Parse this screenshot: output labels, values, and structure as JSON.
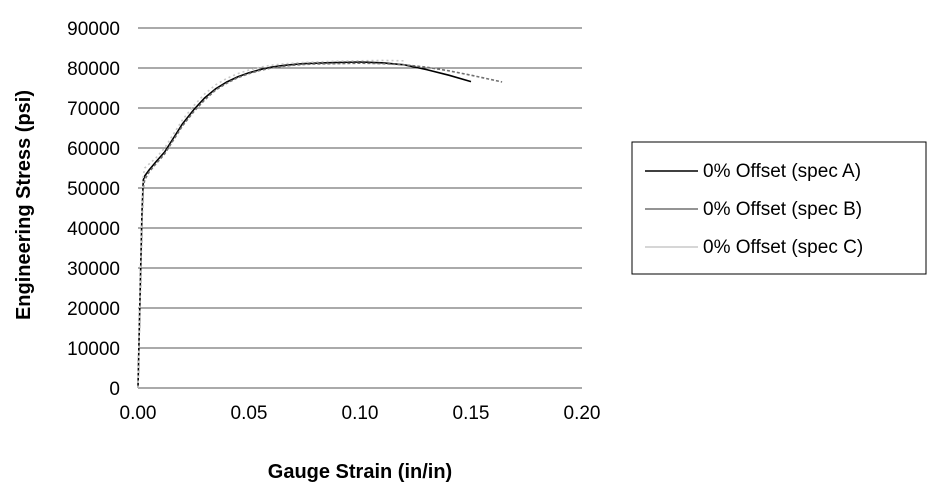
{
  "chart_data": {
    "type": "line",
    "xlabel": "Gauge Strain (in/in)",
    "ylabel": "Engineering Stress (psi)",
    "xlim": [
      0,
      0.2
    ],
    "ylim": [
      0,
      90000
    ],
    "x_ticks": [
      "0.00",
      "0.05",
      "0.10",
      "0.15",
      "0.20"
    ],
    "y_ticks": [
      "0",
      "10000",
      "20000",
      "30000",
      "40000",
      "50000",
      "60000",
      "70000",
      "80000",
      "90000"
    ],
    "grid": "horizontal",
    "legend_position": "right",
    "series": [
      {
        "name": "0% Offset (spec A)",
        "color": "#000000",
        "x": [
          0.0,
          0.0006,
          0.0012,
          0.0018,
          0.0024,
          0.003,
          0.005,
          0.008,
          0.012,
          0.016,
          0.02,
          0.025,
          0.03,
          0.035,
          0.04,
          0.045,
          0.05,
          0.055,
          0.06,
          0.065,
          0.07,
          0.075,
          0.08,
          0.09,
          0.1,
          0.11,
          0.12,
          0.13,
          0.14,
          0.15
        ],
        "y": [
          0,
          15000,
          30000,
          44000,
          52000,
          53000,
          54500,
          56500,
          59000,
          62500,
          66000,
          69500,
          72500,
          74800,
          76500,
          77800,
          78800,
          79600,
          80200,
          80600,
          80900,
          81100,
          81200,
          81400,
          81500,
          81300,
          80800,
          79600,
          78200,
          76600
        ]
      },
      {
        "name": "0% Offset (spec B)",
        "color": "#707070",
        "x": [
          0.0,
          0.0006,
          0.0012,
          0.0018,
          0.0024,
          0.003,
          0.005,
          0.008,
          0.012,
          0.016,
          0.02,
          0.025,
          0.03,
          0.035,
          0.04,
          0.045,
          0.05,
          0.055,
          0.06,
          0.065,
          0.07,
          0.075,
          0.08,
          0.09,
          0.1,
          0.11,
          0.12,
          0.13,
          0.14,
          0.15,
          0.16,
          0.164
        ],
        "y": [
          0,
          14000,
          28000,
          42000,
          50000,
          52000,
          54000,
          56000,
          58500,
          62000,
          65500,
          69000,
          72000,
          74500,
          76200,
          77600,
          78600,
          79400,
          80000,
          80400,
          80700,
          80900,
          81000,
          81100,
          81200,
          81100,
          80800,
          80200,
          79300,
          78200,
          77000,
          76500
        ]
      },
      {
        "name": "0% Offset (spec C)",
        "color": "#c8c8c8",
        "x": [
          0.0,
          0.0006,
          0.0012,
          0.0018,
          0.0024,
          0.003,
          0.005,
          0.008,
          0.012,
          0.016,
          0.02,
          0.025,
          0.03,
          0.035,
          0.04,
          0.045,
          0.05,
          0.055,
          0.06,
          0.065,
          0.07,
          0.075,
          0.08,
          0.09,
          0.1,
          0.11,
          0.12
        ],
        "y": [
          0,
          16000,
          32000,
          46000,
          53000,
          55000,
          56000,
          57500,
          60000,
          63500,
          67000,
          70500,
          73500,
          75800,
          77400,
          78600,
          79500,
          80200,
          80700,
          81000,
          81200,
          81400,
          81500,
          81700,
          81800,
          81900,
          81800
        ]
      }
    ]
  }
}
